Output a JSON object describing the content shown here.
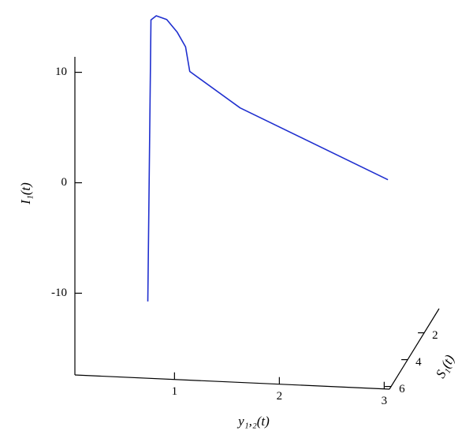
{
  "chart_data": {
    "type": "line3d",
    "xlabel": "y₁,₂(t)",
    "ylabel": "S₁(t)",
    "zlabel": "I₁(t)",
    "series": [
      {
        "color": "#1f2fcf",
        "x": [
          0.73,
          0.76,
          0.81,
          0.91,
          1.01,
          1.09,
          1.13,
          1.61,
          3.02
        ],
        "y": [
          6,
          6,
          6,
          6,
          6,
          6,
          6,
          6,
          6
        ],
        "values": [
          -10.7,
          14.8,
          15.2,
          14.9,
          13.8,
          12.5,
          10.3,
          7.2,
          1.3
        ]
      }
    ],
    "xlim": [
      0.05,
      3.05
    ],
    "xticks": [
      1,
      2,
      3
    ],
    "ylim": [
      0.2,
      6.2
    ],
    "yticks": [
      2,
      4,
      6
    ],
    "zlim": [
      -17.4,
      11.4
    ],
    "zticks": [
      -10,
      0,
      10
    ]
  }
}
